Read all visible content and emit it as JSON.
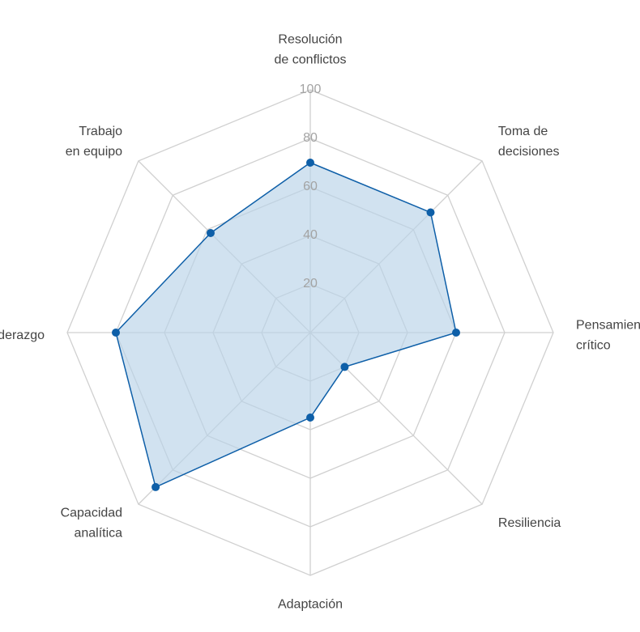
{
  "chart_data": {
    "type": "radar",
    "title": "",
    "categories": [
      [
        "Resolución",
        "de conflictos"
      ],
      [
        "Toma de",
        "decisiones"
      ],
      [
        "Pensamiento",
        "crítico"
      ],
      [
        "Resiliencia"
      ],
      [
        "Adaptación"
      ],
      [
        "Capacidad",
        "analítica"
      ],
      [
        "Liderazgo"
      ],
      [
        "Trabajo",
        "en equipo"
      ]
    ],
    "series": [
      {
        "values": [
          70,
          70,
          60,
          20,
          35,
          90,
          80,
          58
        ]
      }
    ],
    "rlim": [
      0,
      100
    ],
    "ticks": [
      "20",
      "40",
      "60",
      "80",
      "100"
    ],
    "grid": true,
    "colors": {
      "line": "#0e5fa8",
      "fill": "#b9d2e8",
      "grid": "#d0d0d0"
    }
  }
}
